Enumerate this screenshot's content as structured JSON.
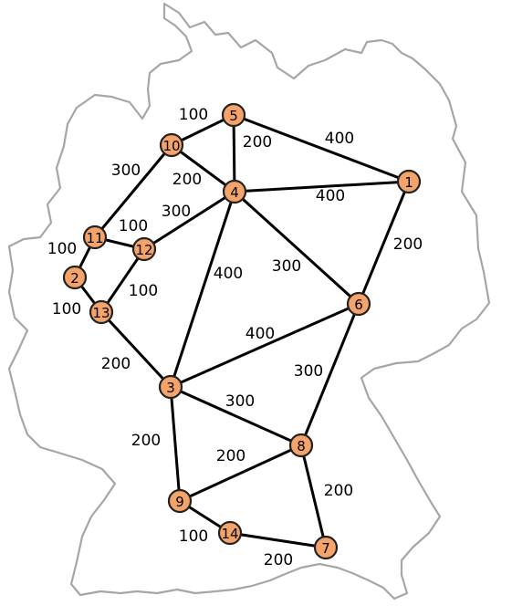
{
  "colors": {
    "node_fill": "#f4a46a",
    "node_stroke": "#222222",
    "edge": "#000000",
    "map_border": "#a6a6a6"
  },
  "map": {
    "outline": "germany-border-outline"
  },
  "nodes": [
    {
      "id": "1",
      "label": "1"
    },
    {
      "id": "2",
      "label": "2"
    },
    {
      "id": "3",
      "label": "3"
    },
    {
      "id": "4",
      "label": "4"
    },
    {
      "id": "5",
      "label": "5"
    },
    {
      "id": "6",
      "label": "6"
    },
    {
      "id": "7",
      "label": "7"
    },
    {
      "id": "8",
      "label": "8"
    },
    {
      "id": "9",
      "label": "9"
    },
    {
      "id": "10",
      "label": "10"
    },
    {
      "id": "11",
      "label": "11"
    },
    {
      "id": "12",
      "label": "12"
    },
    {
      "id": "13",
      "label": "13"
    },
    {
      "id": "14",
      "label": "14"
    }
  ],
  "edges": [
    {
      "from": "10",
      "to": "5",
      "weight": "100"
    },
    {
      "from": "5",
      "to": "4",
      "weight": "200"
    },
    {
      "from": "5",
      "to": "1",
      "weight": "400"
    },
    {
      "from": "10",
      "to": "4",
      "weight": "200"
    },
    {
      "from": "10",
      "to": "11",
      "weight": "300"
    },
    {
      "from": "4",
      "to": "1",
      "weight": "400"
    },
    {
      "from": "4",
      "to": "12",
      "weight": "300"
    },
    {
      "from": "4",
      "to": "3",
      "weight": "400"
    },
    {
      "from": "4",
      "to": "6",
      "weight": "300"
    },
    {
      "from": "1",
      "to": "6",
      "weight": "200"
    },
    {
      "from": "11",
      "to": "12",
      "weight": "100"
    },
    {
      "from": "11",
      "to": "2",
      "weight": "100"
    },
    {
      "from": "12",
      "to": "13",
      "weight": "100"
    },
    {
      "from": "2",
      "to": "13",
      "weight": "100"
    },
    {
      "from": "13",
      "to": "3",
      "weight": "200"
    },
    {
      "from": "3",
      "to": "6",
      "weight": "400"
    },
    {
      "from": "6",
      "to": "8",
      "weight": "300"
    },
    {
      "from": "3",
      "to": "8",
      "weight": "300"
    },
    {
      "from": "3",
      "to": "9",
      "weight": "200"
    },
    {
      "from": "9",
      "to": "8",
      "weight": "200"
    },
    {
      "from": "8",
      "to": "7",
      "weight": "200"
    },
    {
      "from": "9",
      "to": "14",
      "weight": "100"
    },
    {
      "from": "14",
      "to": "7",
      "weight": "200"
    }
  ]
}
